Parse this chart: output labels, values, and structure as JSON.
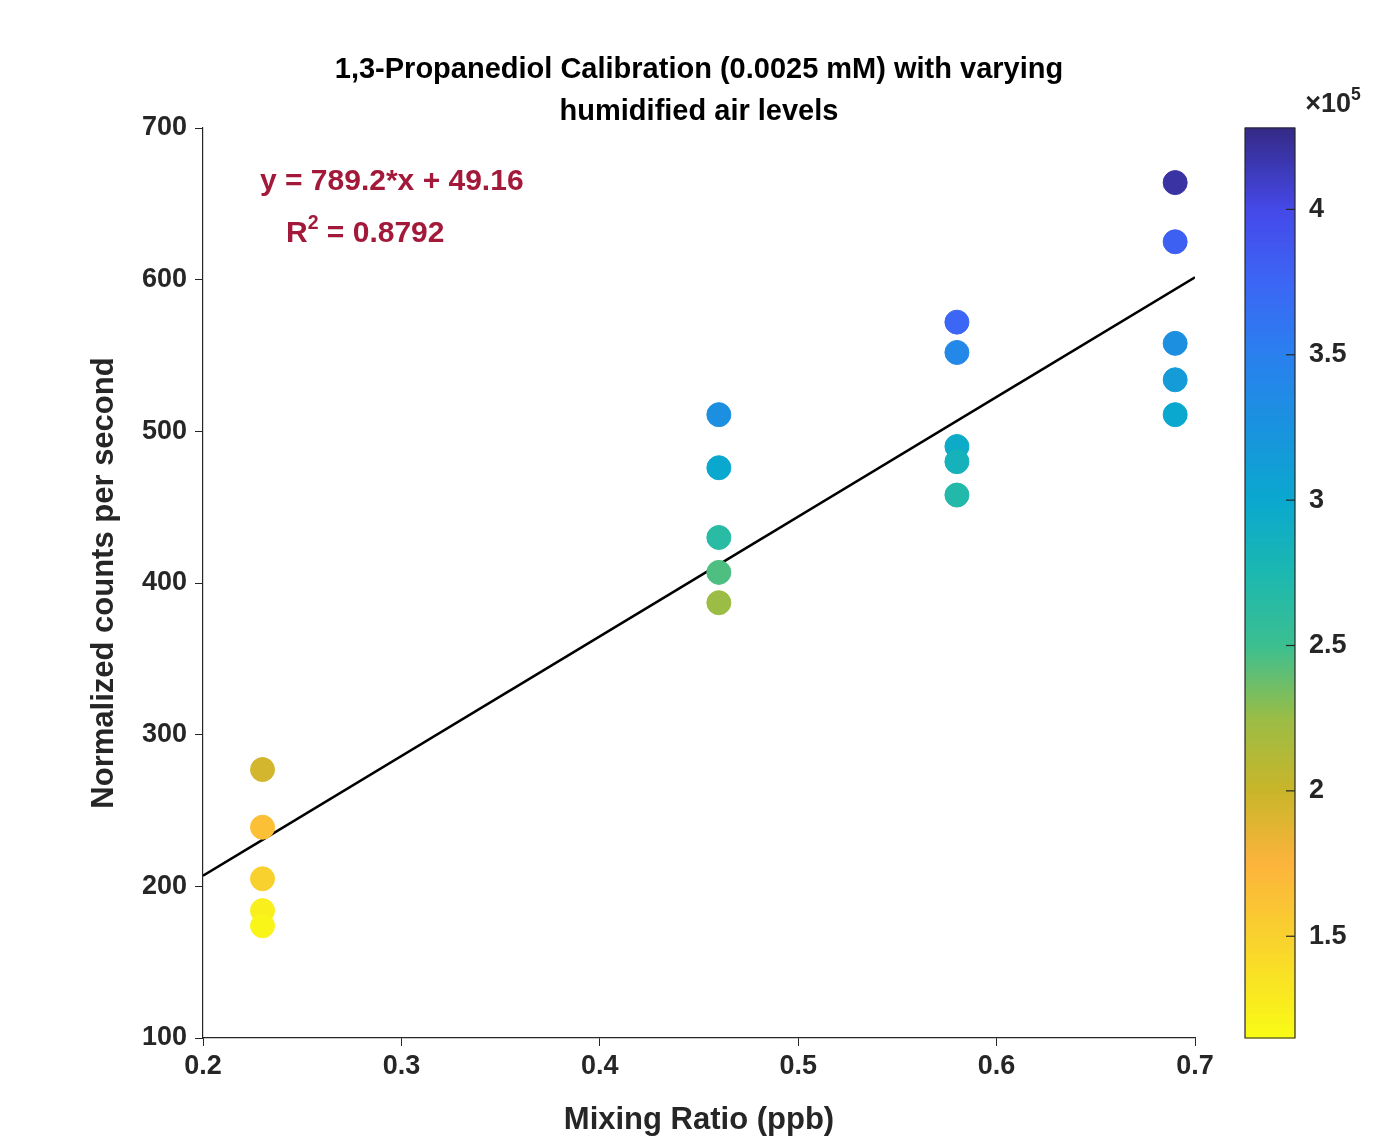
{
  "chart_data": {
    "type": "scatter",
    "title": "1,3-Propanediol Calibration (0.0025 mM) with varying humidified air levels",
    "xlabel": "Mixing Ratio (ppb)",
    "ylabel": "Normalized counts per second",
    "clabel": "×10$^{5}$",
    "xlim": [
      0.2,
      0.7
    ],
    "xticks": [
      0.2,
      0.3,
      0.4,
      0.5,
      0.6,
      0.7
    ],
    "ylim": [
      100,
      700
    ],
    "yticks": [
      100,
      200,
      300,
      400,
      500,
      600,
      700
    ],
    "clim": [
      1.15,
      4.28
    ],
    "cticks": [
      1.5,
      2,
      2.5,
      3,
      3.5,
      4
    ],
    "grid": false,
    "legend": false,
    "marker": "circle",
    "series": [
      {
        "type": "scatter",
        "colors": [
          "#d3b52e",
          "#fbc036",
          "#f9d12e",
          "#f9ef1c",
          "#f9f519",
          "#1d8fe1",
          "#0aa8cf",
          "#29bba3",
          "#4fbf81",
          "#9bbd45",
          "#3c66f5",
          "#2488e8",
          "#0eabc9",
          "#15b2bc",
          "#22b9aa",
          "#3a33a3",
          "#3e60f2",
          "#1d8fe1",
          "#149bd8",
          "#0aa8cf"
        ],
        "x": [
          0.23,
          0.23,
          0.23,
          0.23,
          0.23,
          0.46,
          0.46,
          0.46,
          0.46,
          0.46,
          0.58,
          0.58,
          0.58,
          0.58,
          0.58,
          0.69,
          0.69,
          0.69,
          0.69,
          0.69
        ],
        "values": [
          277,
          239,
          205,
          184,
          174,
          511,
          476,
          430,
          407,
          387,
          572,
          552,
          490,
          480,
          458,
          664,
          625,
          558,
          534,
          511
        ],
        "cvalues": [
          1.95,
          1.65,
          1.5,
          1.25,
          1.2,
          3.3,
          3.0,
          2.65,
          2.45,
          2.25,
          3.75,
          3.4,
          2.95,
          2.85,
          2.7,
          4.2,
          3.8,
          3.3,
          3.15,
          3.0
        ]
      },
      {
        "type": "line",
        "x": [
          0.2,
          0.7
        ],
        "values": [
          207.0,
          601.6
        ],
        "color": "#000000",
        "marker": "none"
      }
    ],
    "annotations": [
      "y = 789.2*x + 49.16",
      "R$^{2}$ = 0.8792"
    ]
  }
}
